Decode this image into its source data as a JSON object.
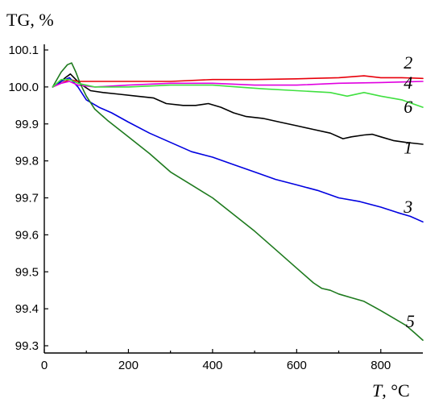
{
  "chart_data": {
    "type": "line",
    "title": "",
    "ylabel": "TG, %",
    "xlabel_var": "T",
    "xlabel_unit": ", °C",
    "xlim": [
      0,
      900
    ],
    "ylim": [
      99.27,
      100.1
    ],
    "grid": false,
    "x_ticks": [
      0,
      200,
      400,
      600,
      800
    ],
    "y_ticks": [
      99.3,
      99.4,
      99.5,
      99.6,
      99.7,
      99.8,
      99.9,
      100.0,
      100.1
    ],
    "x_tick_labels": [
      "0",
      "200",
      "400",
      "600",
      "800"
    ],
    "y_tick_labels": [
      "99.3",
      "99.4",
      "99.5",
      "99.6",
      "99.7",
      "99.8",
      "99.9",
      "100.0",
      "100.1"
    ],
    "series": [
      {
        "name": "1",
        "color": "#000000",
        "label_pos": [
          865,
          99.82
        ],
        "points": [
          [
            20,
            100.0
          ],
          [
            35,
            100.01
          ],
          [
            50,
            100.025
          ],
          [
            62,
            100.035
          ],
          [
            75,
            100.02
          ],
          [
            90,
            100.005
          ],
          [
            110,
            99.99
          ],
          [
            140,
            99.985
          ],
          [
            180,
            99.98
          ],
          [
            220,
            99.975
          ],
          [
            260,
            99.97
          ],
          [
            290,
            99.955
          ],
          [
            330,
            99.95
          ],
          [
            360,
            99.95
          ],
          [
            390,
            99.955
          ],
          [
            420,
            99.945
          ],
          [
            450,
            99.93
          ],
          [
            480,
            99.92
          ],
          [
            520,
            99.915
          ],
          [
            560,
            99.905
          ],
          [
            600,
            99.895
          ],
          [
            640,
            99.885
          ],
          [
            680,
            99.875
          ],
          [
            710,
            99.86
          ],
          [
            730,
            99.865
          ],
          [
            760,
            99.87
          ],
          [
            780,
            99.872
          ],
          [
            800,
            99.865
          ],
          [
            830,
            99.855
          ],
          [
            860,
            99.85
          ],
          [
            900,
            99.845
          ]
        ]
      },
      {
        "name": "2",
        "color": "#e8000b",
        "label_pos": [
          865,
          100.05
        ],
        "points": [
          [
            20,
            100.0
          ],
          [
            40,
            100.01
          ],
          [
            60,
            100.02
          ],
          [
            80,
            100.015
          ],
          [
            120,
            100.015
          ],
          [
            200,
            100.015
          ],
          [
            300,
            100.015
          ],
          [
            400,
            100.02
          ],
          [
            500,
            100.02
          ],
          [
            600,
            100.022
          ],
          [
            700,
            100.025
          ],
          [
            760,
            100.03
          ],
          [
            800,
            100.025
          ],
          [
            850,
            100.025
          ],
          [
            900,
            100.023
          ]
        ]
      },
      {
        "name": "3",
        "color": "#0000e0",
        "label_pos": [
          865,
          99.66
        ],
        "points": [
          [
            20,
            100.0
          ],
          [
            40,
            100.015
          ],
          [
            60,
            100.025
          ],
          [
            80,
            100.0
          ],
          [
            100,
            99.965
          ],
          [
            130,
            99.945
          ],
          [
            160,
            99.93
          ],
          [
            200,
            99.905
          ],
          [
            250,
            99.875
          ],
          [
            300,
            99.85
          ],
          [
            350,
            99.825
          ],
          [
            400,
            99.81
          ],
          [
            450,
            99.79
          ],
          [
            500,
            99.77
          ],
          [
            550,
            99.75
          ],
          [
            600,
            99.735
          ],
          [
            650,
            99.72
          ],
          [
            700,
            99.7
          ],
          [
            750,
            99.69
          ],
          [
            800,
            99.675
          ],
          [
            840,
            99.66
          ],
          [
            870,
            99.65
          ],
          [
            900,
            99.635
          ]
        ]
      },
      {
        "name": "4",
        "color": "#e000e0",
        "label_pos": [
          865,
          99.995
        ],
        "points": [
          [
            20,
            100.0
          ],
          [
            40,
            100.01
          ],
          [
            60,
            100.015
          ],
          [
            80,
            100.005
          ],
          [
            120,
            100.0
          ],
          [
            200,
            100.005
          ],
          [
            300,
            100.01
          ],
          [
            400,
            100.01
          ],
          [
            500,
            100.005
          ],
          [
            600,
            100.005
          ],
          [
            700,
            100.01
          ],
          [
            800,
            100.012
          ],
          [
            900,
            100.015
          ]
        ]
      },
      {
        "name": "5",
        "color": "#1e7a1e",
        "label_pos": [
          870,
          99.35
        ],
        "points": [
          [
            20,
            100.0
          ],
          [
            40,
            100.04
          ],
          [
            55,
            100.06
          ],
          [
            65,
            100.065
          ],
          [
            75,
            100.04
          ],
          [
            85,
            100.01
          ],
          [
            100,
            99.975
          ],
          [
            120,
            99.94
          ],
          [
            150,
            99.91
          ],
          [
            200,
            99.865
          ],
          [
            250,
            99.82
          ],
          [
            300,
            99.77
          ],
          [
            350,
            99.735
          ],
          [
            400,
            99.7
          ],
          [
            450,
            99.655
          ],
          [
            500,
            99.61
          ],
          [
            550,
            99.56
          ],
          [
            600,
            99.51
          ],
          [
            640,
            99.47
          ],
          [
            660,
            99.455
          ],
          [
            680,
            99.45
          ],
          [
            700,
            99.44
          ],
          [
            730,
            99.43
          ],
          [
            760,
            99.42
          ],
          [
            800,
            99.395
          ],
          [
            830,
            99.375
          ],
          [
            860,
            99.355
          ],
          [
            880,
            99.335
          ],
          [
            900,
            99.315
          ]
        ]
      },
      {
        "name": "6",
        "color": "#40e040",
        "label_pos": [
          865,
          99.93
        ],
        "points": [
          [
            20,
            100.0
          ],
          [
            40,
            100.02
          ],
          [
            60,
            100.02
          ],
          [
            80,
            100.01
          ],
          [
            120,
            100.0
          ],
          [
            200,
            100.0
          ],
          [
            300,
            100.005
          ],
          [
            400,
            100.005
          ],
          [
            460,
            100.0
          ],
          [
            520,
            99.995
          ],
          [
            600,
            99.99
          ],
          [
            680,
            99.985
          ],
          [
            720,
            99.975
          ],
          [
            760,
            99.985
          ],
          [
            800,
            99.975
          ],
          [
            850,
            99.965
          ],
          [
            900,
            99.945
          ]
        ]
      }
    ]
  }
}
